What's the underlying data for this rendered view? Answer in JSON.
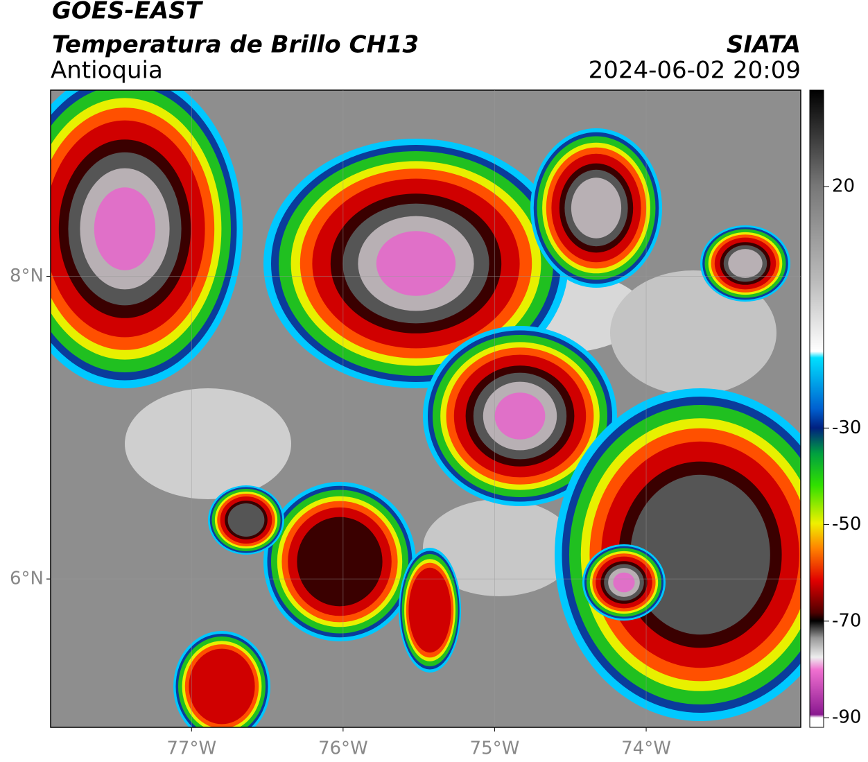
{
  "header": {
    "title": "GOES-EAST",
    "subtitle": "Temperatura de Brillo CH13",
    "region": "Antioquia",
    "source": "SIATA",
    "datetime": "2024-06-02 20:09"
  },
  "map": {
    "xlim": [
      -77.93,
      -72.98
    ],
    "ylim": [
      5.02,
      9.23
    ],
    "xticks": [
      {
        "value": -77,
        "label": "77°W"
      },
      {
        "value": -76,
        "label": "76°W"
      },
      {
        "value": -75,
        "label": "75°W"
      },
      {
        "value": -74,
        "label": "74°W"
      }
    ],
    "yticks": [
      {
        "value": 6,
        "label": "6°N"
      },
      {
        "value": 8,
        "label": "8°N"
      }
    ],
    "grid": true
  },
  "colorbar": {
    "lim": [
      -92,
      40
    ],
    "ticks": [
      -90,
      -70,
      -50,
      -30,
      20
    ]
  }
}
